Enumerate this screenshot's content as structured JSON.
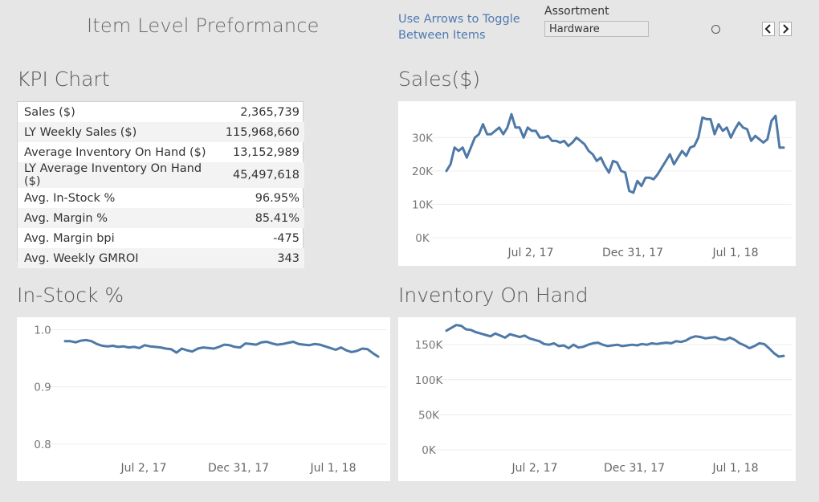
{
  "header": {
    "title": "Item Level Preformance",
    "hint_line1": "Use Arrows to Toggle",
    "hint_line2": "Between Items",
    "assortment_label": "Assortment",
    "assortment_value": "Hardware"
  },
  "kpi": {
    "title": "KPI Chart",
    "rows": [
      {
        "label": "Sales ($)",
        "value": "2,365,739"
      },
      {
        "label": "LY Weekly Sales ($)",
        "value": "115,968,660"
      },
      {
        "label": "Average Inventory On Hand ($)",
        "value": "13,152,989"
      },
      {
        "label": "LY Average Inventory On Hand ($)",
        "value": "45,497,618"
      },
      {
        "label": "Avg. In-Stock %",
        "value": "96.95%"
      },
      {
        "label": "Avg. Margin %",
        "value": "85.41%"
      },
      {
        "label": "Avg. Margin bpi",
        "value": "-475"
      },
      {
        "label": "Avg. Weekly GMROI",
        "value": "343"
      }
    ]
  },
  "colors": {
    "line": "#4e79a7",
    "grid": "#ececec"
  },
  "chart_data": [
    {
      "id": "sales",
      "type": "line",
      "title": "Sales($)",
      "x_ticks": [
        "Jul 2, 17",
        "Dec 31, 17",
        "Jul 1, 18"
      ],
      "y_ticks": [
        "0K",
        "10K",
        "20K",
        "30K"
      ],
      "y_tick_values": [
        0,
        10000,
        20000,
        30000
      ],
      "ylim": [
        0,
        38000
      ],
      "grid": true,
      "series": [
        {
          "values": [
            20000,
            22000,
            27000,
            26000,
            27000,
            24000,
            27000,
            30000,
            31000,
            34000,
            31000,
            31000,
            32000,
            33000,
            31000,
            33000,
            37000,
            33000,
            33000,
            30000,
            33000,
            32000,
            32000,
            30000,
            30000,
            30500,
            29000,
            29000,
            28500,
            29000,
            27500,
            28500,
            30000,
            29000,
            28000,
            26000,
            25000,
            23000,
            24000,
            21500,
            19500,
            23000,
            22500,
            20000,
            19500,
            14000,
            13500,
            17000,
            15500,
            18000,
            18000,
            17500,
            19000,
            21000,
            23000,
            25000,
            22000,
            24000,
            26000,
            24500,
            27000,
            27500,
            30000,
            36000,
            35500,
            35500,
            31000,
            34000,
            32000,
            33000,
            30000,
            32500,
            34500,
            33000,
            32500,
            29000,
            30500,
            29500,
            28500,
            29500,
            35000,
            36500,
            27000,
            27000
          ]
        }
      ]
    },
    {
      "id": "instock",
      "type": "line",
      "title": "In-Stock %",
      "x_ticks": [
        "Jul 2, 17",
        "Dec 31, 17",
        "Jul 1, 18"
      ],
      "y_ticks": [
        "0.8",
        "0.9",
        "1.0"
      ],
      "y_tick_values": [
        0.8,
        0.9,
        1.0
      ],
      "ylim": [
        0.79,
        1.005
      ],
      "grid": true,
      "series": [
        {
          "values": [
            0.98,
            0.98,
            0.978,
            0.981,
            0.982,
            0.98,
            0.975,
            0.972,
            0.971,
            0.972,
            0.97,
            0.971,
            0.969,
            0.97,
            0.968,
            0.973,
            0.971,
            0.97,
            0.969,
            0.967,
            0.966,
            0.96,
            0.967,
            0.964,
            0.962,
            0.967,
            0.969,
            0.968,
            0.967,
            0.97,
            0.974,
            0.973,
            0.97,
            0.969,
            0.976,
            0.975,
            0.974,
            0.978,
            0.979,
            0.976,
            0.974,
            0.975,
            0.977,
            0.979,
            0.975,
            0.974,
            0.973,
            0.975,
            0.974,
            0.971,
            0.968,
            0.965,
            0.969,
            0.964,
            0.961,
            0.963,
            0.967,
            0.966,
            0.959,
            0.953
          ]
        }
      ]
    },
    {
      "id": "inventory",
      "type": "line",
      "title": "Inventory On Hand",
      "x_ticks": [
        "Jul 2, 17",
        "Dec 31, 17",
        "Jul 1, 18"
      ],
      "y_ticks": [
        "0K",
        "50K",
        "100K",
        "150K"
      ],
      "y_tick_values": [
        0,
        50000,
        100000,
        150000
      ],
      "ylim": [
        0,
        180000
      ],
      "grid": true,
      "series": [
        {
          "values": [
            170000,
            174000,
            178000,
            177000,
            172000,
            171000,
            168000,
            166000,
            164000,
            162000,
            166000,
            163000,
            160000,
            165000,
            163000,
            161000,
            163000,
            159000,
            157000,
            155000,
            151000,
            150000,
            152000,
            148000,
            149000,
            145000,
            150000,
            146000,
            147000,
            150000,
            152000,
            153000,
            150000,
            148000,
            149000,
            150000,
            148000,
            149000,
            150000,
            149000,
            151000,
            150000,
            152000,
            151000,
            152000,
            153000,
            152000,
            155000,
            154000,
            156000,
            160000,
            162000,
            161000,
            159000,
            160000,
            161000,
            158000,
            157000,
            160000,
            157000,
            152000,
            149000,
            145000,
            148000,
            152000,
            151000,
            145000,
            138000,
            133000,
            134000
          ]
        }
      ]
    }
  ]
}
